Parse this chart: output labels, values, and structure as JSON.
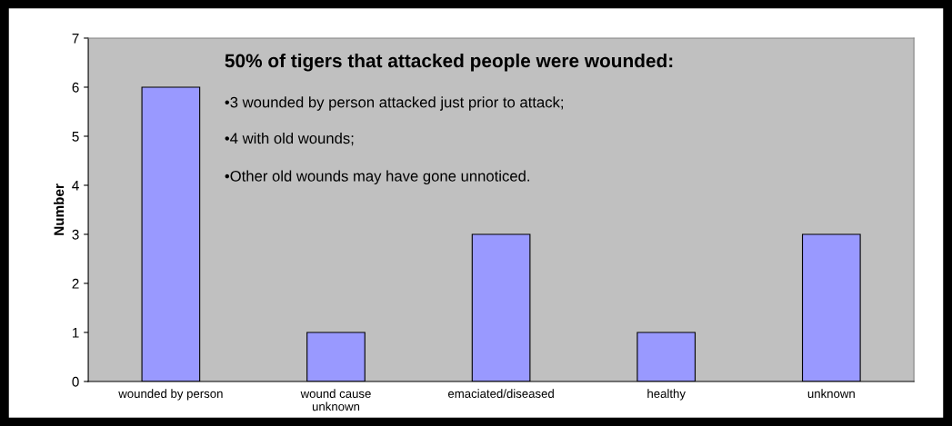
{
  "chart_data": {
    "type": "bar",
    "ylabel": "Number",
    "categories": [
      "wounded by person",
      "wound cause\nunknown",
      "emaciated/diseased",
      "healthy",
      "unknown"
    ],
    "values": [
      6,
      1,
      3,
      1,
      3
    ],
    "color": "#9999ff",
    "ylim": [
      0,
      7
    ],
    "yticks": [
      0,
      1,
      2,
      3,
      4,
      5,
      6,
      7
    ],
    "grid": false,
    "legend": false,
    "annotations": [
      "50% of tigers that attacked people were wounded:",
      "•3 wounded by person attacked just prior to attack;",
      "•4 with old wounds;",
      "•Other old wounds may have gone unnoticed."
    ]
  }
}
